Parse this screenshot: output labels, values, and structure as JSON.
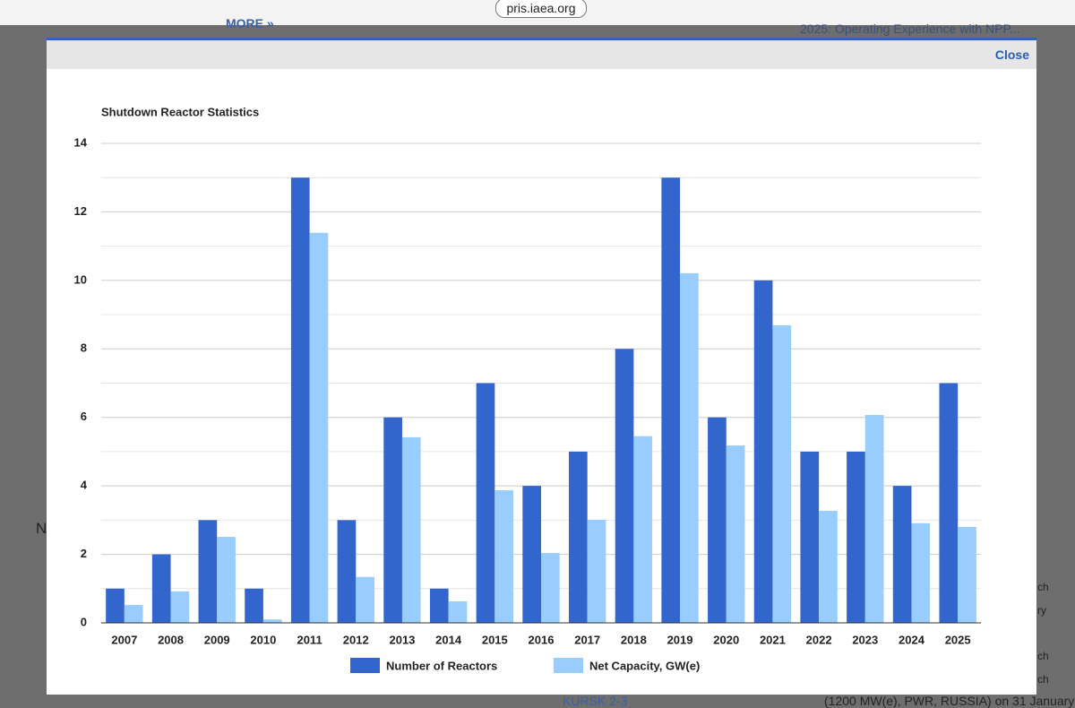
{
  "browser": {
    "url": "pris.iaea.org"
  },
  "background": {
    "more_link": "MORE »",
    "sidebar_link": "2025: Operating Experience with NPP...",
    "heading_fragment": "N",
    "list_link": "KURSK 2-3",
    "list_text": "(1200 MW(e), PWR, RUSSIA) on 31 January",
    "right_fragment_1": "ch",
    "right_fragment_2": "ry",
    "right_fragment_3": "ch",
    "right_fragment_4": "ch"
  },
  "dialog": {
    "close": "Close"
  },
  "chart_data": {
    "type": "bar",
    "title": "Shutdown Reactor Statistics",
    "categories": [
      "2007",
      "2008",
      "2009",
      "2010",
      "2011",
      "2012",
      "2013",
      "2014",
      "2015",
      "2016",
      "2017",
      "2018",
      "2019",
      "2020",
      "2021",
      "2022",
      "2023",
      "2024",
      "2025"
    ],
    "series": [
      {
        "name": "Number of Reactors",
        "color": "#3366cc",
        "values": [
          1,
          2,
          3,
          1,
          13,
          3,
          6,
          1,
          7,
          4,
          5,
          8,
          13,
          6,
          10,
          5,
          5,
          4,
          7
        ]
      },
      {
        "name": "Net Capacity, GW(e)",
        "color": "#99ccff",
        "values": [
          0.52,
          0.92,
          2.51,
          0.1,
          11.39,
          1.34,
          5.42,
          0.63,
          3.87,
          2.04,
          3.01,
          5.45,
          10.21,
          5.18,
          8.69,
          3.27,
          6.07,
          2.91,
          2.8
        ]
      }
    ],
    "ylim": [
      0,
      14
    ],
    "yticks": [
      0,
      2,
      4,
      6,
      8,
      10,
      12,
      14
    ],
    "grid": true,
    "legend": "bottom"
  }
}
